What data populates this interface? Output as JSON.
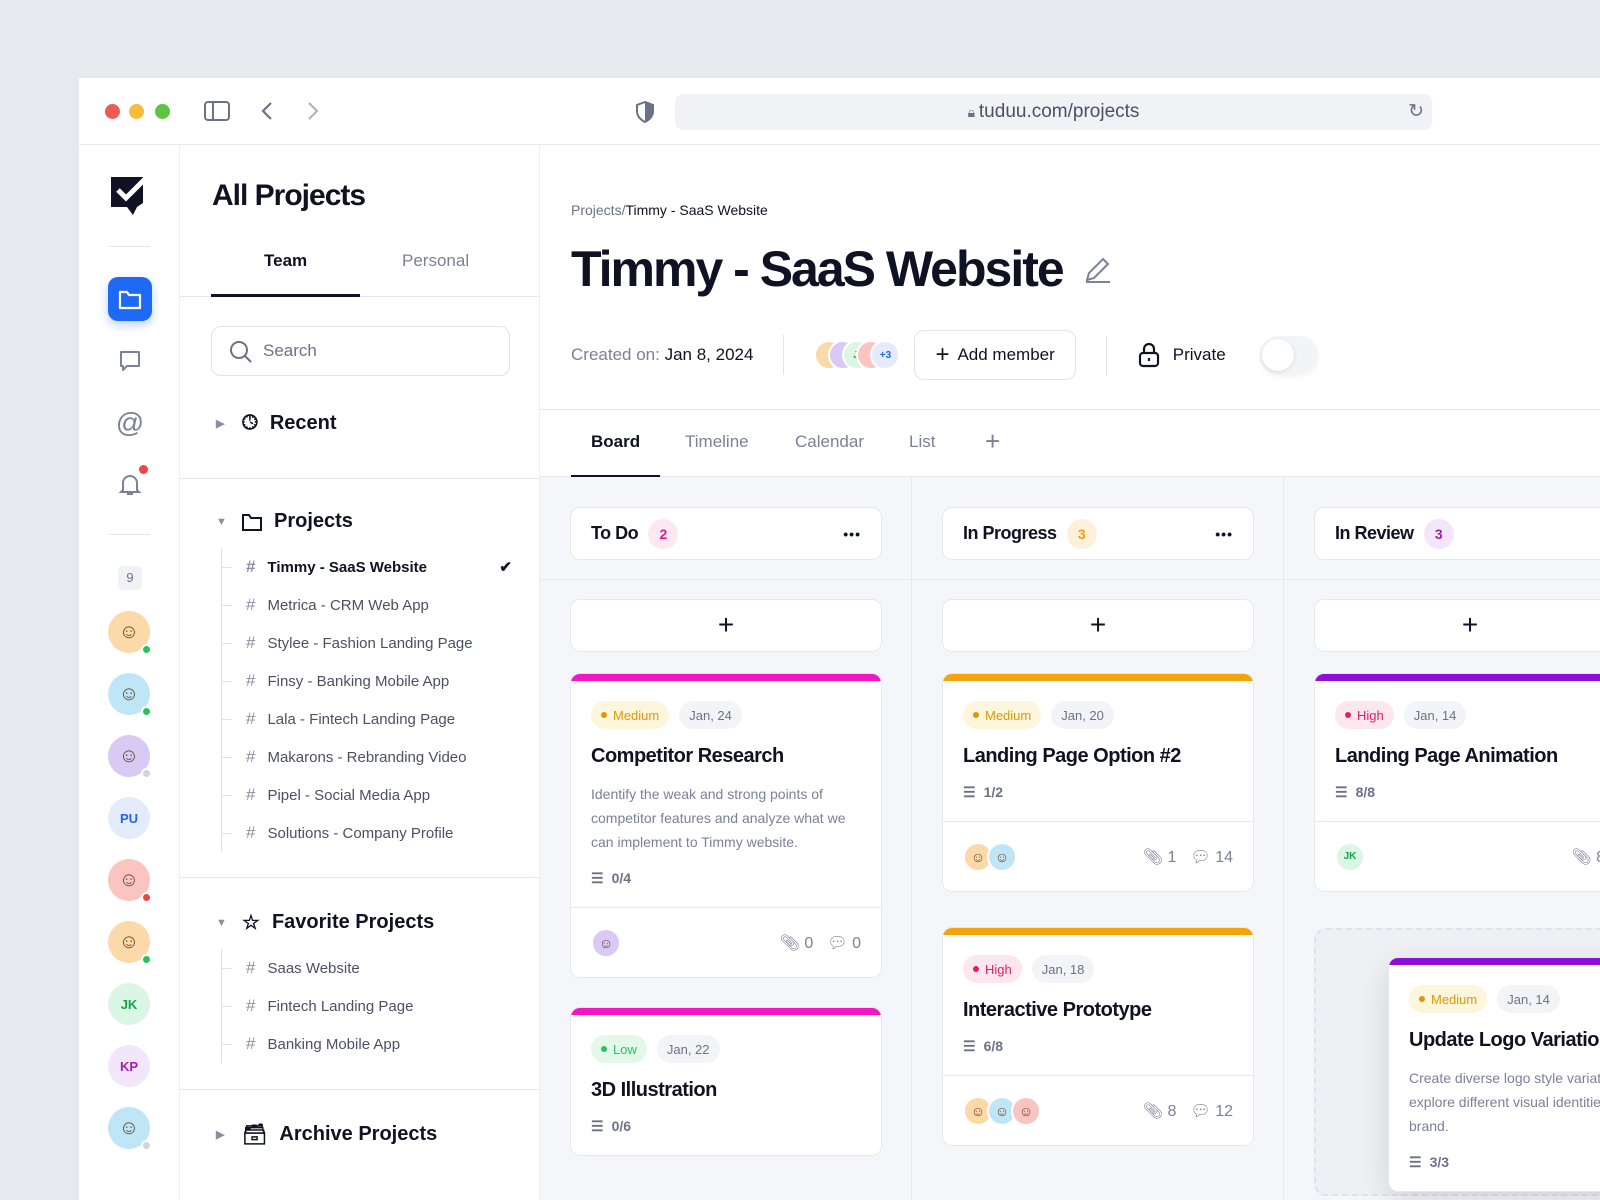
{
  "browser": {
    "url": "tuduu.com/projects"
  },
  "rail": {
    "badge": "9",
    "avatars": [
      {
        "initials": "",
        "bg": "#fcd9a8",
        "status": "#22c55e"
      },
      {
        "initials": "",
        "bg": "#bfe6f7",
        "status": "#22c55e"
      },
      {
        "initials": "",
        "bg": "#d9c9f5",
        "status": "#d1d5db"
      },
      {
        "initials": "PU",
        "bg": "#e4ecfb",
        "fg": "#2563eb",
        "status": "#ef4444"
      },
      {
        "initials": "",
        "bg": "#fbc4c0",
        "status": "#ef4444"
      },
      {
        "initials": "",
        "bg": "#fcd9a8",
        "status": "#22c55e"
      },
      {
        "initials": "JK",
        "bg": "#dcf6e5",
        "fg": "#16a34a",
        "status": "#f59e0b"
      },
      {
        "initials": "KP",
        "bg": "#f3e6fb",
        "fg": "#a21caf",
        "status": "#f59e0b"
      },
      {
        "initials": "",
        "bg": "#bfe6f7",
        "status": "#d1d5db"
      }
    ]
  },
  "sidebar": {
    "title": "All Projects",
    "tabs": [
      "Team",
      "Personal"
    ],
    "search_placeholder": "Search",
    "recent": "Recent",
    "projects_label": "Projects",
    "projects": [
      "Timmy - SaaS Website",
      "Metrica - CRM Web App",
      "Stylee - Fashion Landing Page",
      "Finsy - Banking Mobile App",
      "Lala - Fintech Landing Page",
      "Makarons - Rebranding Video",
      "Pipel - Social Media App",
      "Solutions - Company Profile"
    ],
    "favorites_label": "Favorite Projects",
    "favorites": [
      "Saas Website",
      "Fintech Landing Page",
      "Banking Mobile App"
    ],
    "archive_label": "Archive Projects"
  },
  "main": {
    "breadcrumb_root": "Projects/",
    "breadcrumb_current": "Timmy - SaaS Website",
    "title": "Timmy - SaaS Website",
    "created_label": "Created on:",
    "created_date": "Jan 8, 2024",
    "members_more": "+3",
    "member_initials": "JI",
    "add_member": "Add member",
    "privacy": "Private",
    "private_on": false,
    "tabs": [
      "Board",
      "Timeline",
      "Calendar",
      "List"
    ]
  },
  "colors": {
    "accent": "#1f6af5",
    "medium": "#f5a30c",
    "high": "#f0197d",
    "low": "#22c55e",
    "review": "#8b10d8"
  },
  "columns": [
    {
      "name": "To Do",
      "count": "2",
      "count_bg": "#fde7f3",
      "count_fg": "#e11d8f",
      "bar": "#f216c4",
      "cards": [
        {
          "priority": "Medium",
          "date": "Jan, 24",
          "title": "Competitor Research",
          "desc": "Identify the weak and strong points of competitor features and analyze what we can implement to Timmy website.",
          "subtasks": "0/4",
          "attachments": "0",
          "comments": "0"
        },
        {
          "priority": "Low",
          "date": "Jan, 22",
          "title": "3D Illustration",
          "subtasks": "0/6"
        }
      ]
    },
    {
      "name": "In Progress",
      "count": "3",
      "count_bg": "#fdf1dc",
      "count_fg": "#f59e0b",
      "bar": "#f5a30c",
      "cards": [
        {
          "priority": "Medium",
          "date": "Jan, 20",
          "title": "Landing Page Option #2",
          "subtasks": "1/2",
          "attachments": "1",
          "comments": "14"
        },
        {
          "priority": "High",
          "date": "Jan, 18",
          "title": "Interactive Prototype",
          "subtasks": "6/8",
          "attachments": "8",
          "comments": "12"
        }
      ]
    },
    {
      "name": "In Review",
      "count": "3",
      "count_bg": "#f3e6fb",
      "count_fg": "#a21caf",
      "bar": "#8b10d8",
      "cards": [
        {
          "priority": "High",
          "date": "Jan, 14",
          "title": "Landing Page Animation",
          "subtasks": "8/8",
          "attachments": "8",
          "assignee": "JK"
        },
        {
          "priority": "Medium",
          "date": "Jan, 14",
          "title": "Update Logo Variations",
          "desc": "Create diverse logo style variations to explore different visual identities for the brand.",
          "subtasks": "3/3"
        }
      ]
    }
  ]
}
